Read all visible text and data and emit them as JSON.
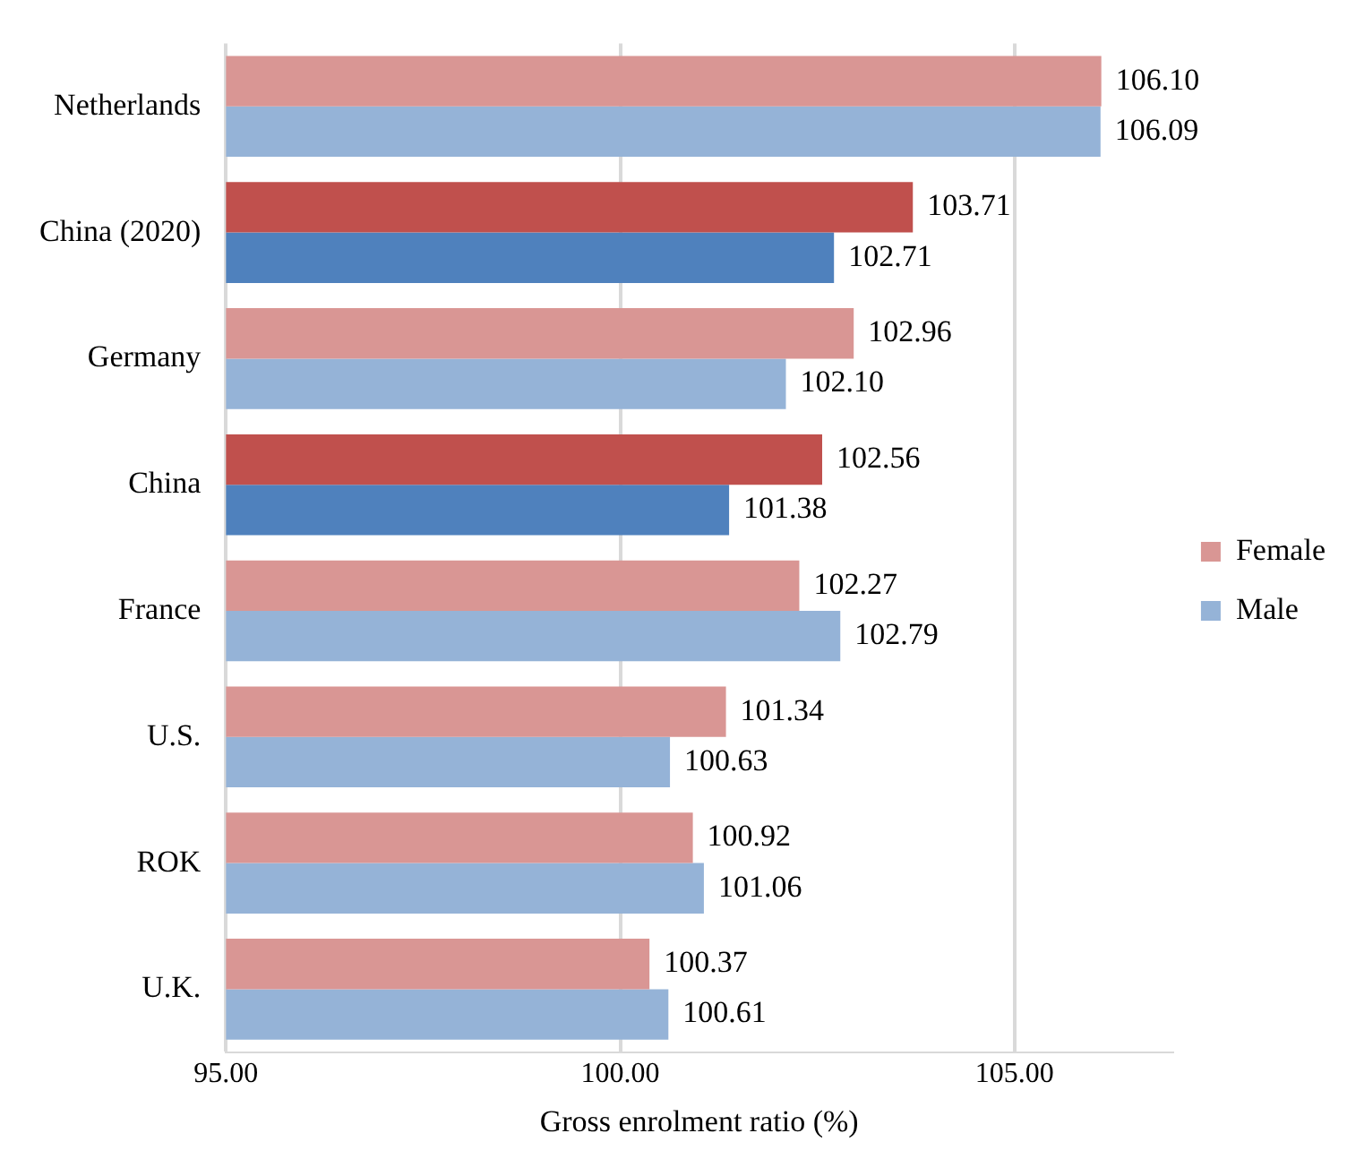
{
  "chart_data": {
    "type": "bar",
    "orientation": "horizontal",
    "xlabel": "Gross enrolment ratio (%)",
    "categories": [
      "Netherlands",
      "China (2020)",
      "Germany",
      "China",
      "France",
      "U.S.",
      "ROK",
      "U.K."
    ],
    "series": [
      {
        "name": "Female",
        "color": "#d99694",
        "colors": [
          "#d99694",
          "#c0504d",
          "#d99694",
          "#c0504d",
          "#d99694",
          "#d99694",
          "#d99694",
          "#d99694"
        ],
        "values": [
          106.1,
          103.71,
          102.96,
          102.56,
          102.27,
          101.34,
          100.92,
          100.37
        ],
        "value_labels": [
          "106.10",
          "103.71",
          "102.96",
          "102.56",
          "102.27",
          "101.34",
          "100.92",
          "100.37"
        ]
      },
      {
        "name": "Male",
        "color": "#95b3d7",
        "colors": [
          "#95b3d7",
          "#4f81bd",
          "#95b3d7",
          "#4f81bd",
          "#95b3d7",
          "#95b3d7",
          "#95b3d7",
          "#95b3d7"
        ],
        "values": [
          106.09,
          102.71,
          102.1,
          101.38,
          102.79,
          100.63,
          101.06,
          100.61
        ],
        "value_labels": [
          "106.09",
          "102.71",
          "102.10",
          "101.38",
          "102.79",
          "100.63",
          "101.06",
          "100.61"
        ]
      }
    ],
    "xlim": [
      95,
      107
    ],
    "xticks": [
      {
        "value": 95,
        "label": "95.00"
      },
      {
        "value": 100,
        "label": "100.00"
      },
      {
        "value": 105,
        "label": "105.00"
      }
    ],
    "grid": "x",
    "legend": "right"
  }
}
